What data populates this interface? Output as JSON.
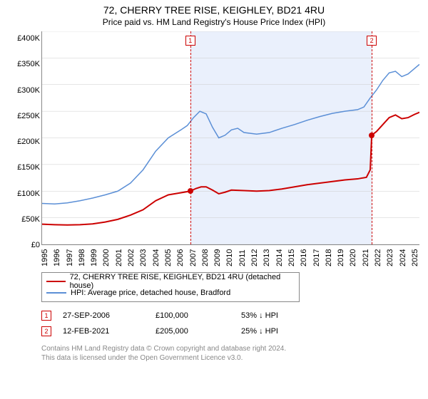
{
  "title": "72, CHERRY TREE RISE, KEIGHLEY, BD21 4RU",
  "subtitle": "Price paid vs. HM Land Registry's House Price Index (HPI)",
  "chart": {
    "type": "line",
    "background_color": "#ffffff",
    "band_color": "#eaf0fc",
    "grid_color": "#cccccc",
    "axis_color": "#888888",
    "title_fontsize": 14,
    "subtitle_fontsize": 12,
    "tick_fontsize": 11,
    "x_range": [
      1995,
      2024.9
    ],
    "y_range": [
      0,
      400000
    ],
    "y_ticks": [
      0,
      50000,
      100000,
      150000,
      200000,
      250000,
      300000,
      350000,
      400000
    ],
    "y_tick_labels": [
      "£0",
      "£50K",
      "£100K",
      "£150K",
      "£200K",
      "£250K",
      "£300K",
      "£350K",
      "£400K"
    ],
    "x_ticks": [
      1995,
      1996,
      1997,
      1998,
      1999,
      2000,
      2001,
      2002,
      2003,
      2004,
      2005,
      2006,
      2007,
      2008,
      2009,
      2010,
      2011,
      2012,
      2013,
      2014,
      2015,
      2016,
      2017,
      2018,
      2019,
      2020,
      2021,
      2022,
      2023,
      2024,
      2025
    ],
    "series": [
      {
        "id": "price_paid",
        "label": "72, CHERRY TREE RISE, KEIGHLEY, BD21 4RU (detached house)",
        "color": "#cc0000",
        "line_width": 2,
        "data": [
          [
            1995.0,
            38000
          ],
          [
            1996.0,
            37000
          ],
          [
            1997.0,
            36500
          ],
          [
            1998.0,
            37000
          ],
          [
            1999.0,
            38500
          ],
          [
            2000.0,
            42000
          ],
          [
            2001.0,
            47000
          ],
          [
            2002.0,
            55000
          ],
          [
            2003.0,
            65000
          ],
          [
            2004.0,
            82000
          ],
          [
            2005.0,
            93000
          ],
          [
            2006.0,
            97000
          ],
          [
            2006.74,
            100000
          ],
          [
            2007.2,
            105000
          ],
          [
            2007.6,
            108000
          ],
          [
            2008.0,
            108000
          ],
          [
            2008.5,
            102000
          ],
          [
            2009.0,
            95000
          ],
          [
            2009.5,
            98000
          ],
          [
            2010.0,
            102000
          ],
          [
            2011.0,
            101000
          ],
          [
            2012.0,
            100000
          ],
          [
            2013.0,
            101000
          ],
          [
            2014.0,
            104000
          ],
          [
            2015.0,
            108000
          ],
          [
            2016.0,
            112000
          ],
          [
            2017.0,
            115000
          ],
          [
            2018.0,
            118000
          ],
          [
            2019.0,
            121000
          ],
          [
            2020.0,
            123000
          ],
          [
            2020.7,
            126000
          ],
          [
            2021.0,
            140000
          ],
          [
            2021.12,
            205000
          ],
          [
            2021.5,
            212000
          ],
          [
            2022.0,
            225000
          ],
          [
            2022.5,
            238000
          ],
          [
            2023.0,
            243000
          ],
          [
            2023.5,
            236000
          ],
          [
            2024.0,
            238000
          ],
          [
            2024.5,
            244000
          ],
          [
            2024.9,
            248000
          ]
        ]
      },
      {
        "id": "hpi",
        "label": "HPI: Average price, detached house, Bradford",
        "color": "#5b8fd6",
        "line_width": 1.5,
        "data": [
          [
            1995.0,
            77000
          ],
          [
            1996.0,
            76000
          ],
          [
            1997.0,
            78000
          ],
          [
            1998.0,
            82000
          ],
          [
            1999.0,
            87000
          ],
          [
            2000.0,
            93000
          ],
          [
            2001.0,
            100000
          ],
          [
            2002.0,
            115000
          ],
          [
            2003.0,
            140000
          ],
          [
            2004.0,
            175000
          ],
          [
            2005.0,
            200000
          ],
          [
            2006.0,
            215000
          ],
          [
            2006.5,
            223000
          ],
          [
            2007.0,
            238000
          ],
          [
            2007.5,
            250000
          ],
          [
            2008.0,
            245000
          ],
          [
            2008.5,
            220000
          ],
          [
            2009.0,
            200000
          ],
          [
            2009.5,
            205000
          ],
          [
            2010.0,
            215000
          ],
          [
            2010.5,
            218000
          ],
          [
            2011.0,
            210000
          ],
          [
            2012.0,
            207000
          ],
          [
            2013.0,
            210000
          ],
          [
            2014.0,
            218000
          ],
          [
            2015.0,
            225000
          ],
          [
            2016.0,
            233000
          ],
          [
            2017.0,
            240000
          ],
          [
            2018.0,
            246000
          ],
          [
            2019.0,
            250000
          ],
          [
            2020.0,
            253000
          ],
          [
            2020.5,
            258000
          ],
          [
            2021.0,
            275000
          ],
          [
            2021.5,
            290000
          ],
          [
            2022.0,
            308000
          ],
          [
            2022.5,
            322000
          ],
          [
            2023.0,
            325000
          ],
          [
            2023.5,
            315000
          ],
          [
            2024.0,
            320000
          ],
          [
            2024.5,
            330000
          ],
          [
            2024.9,
            338000
          ]
        ]
      }
    ],
    "markers": [
      {
        "n": "1",
        "x": 2006.74,
        "y": 100000
      },
      {
        "n": "2",
        "x": 2021.12,
        "y": 205000
      }
    ],
    "sale_points": [
      {
        "x": 2006.74,
        "y": 100000,
        "color": "#cc0000"
      },
      {
        "x": 2021.12,
        "y": 205000,
        "color": "#cc0000"
      }
    ]
  },
  "legend": {
    "items": [
      {
        "color": "#cc0000",
        "label": "72, CHERRY TREE RISE, KEIGHLEY, BD21 4RU (detached house)"
      },
      {
        "color": "#5b8fd6",
        "label": "HPI: Average price, detached house, Bradford"
      }
    ]
  },
  "sales_table": {
    "rows": [
      {
        "n": "1",
        "date": "27-SEP-2006",
        "price": "£100,000",
        "diff": "53% ↓ HPI"
      },
      {
        "n": "2",
        "date": "12-FEB-2021",
        "price": "£205,000",
        "diff": "25% ↓ HPI"
      }
    ]
  },
  "footer": {
    "line1": "Contains HM Land Registry data © Crown copyright and database right 2024.",
    "line2": "This data is licensed under the Open Government Licence v3.0."
  }
}
